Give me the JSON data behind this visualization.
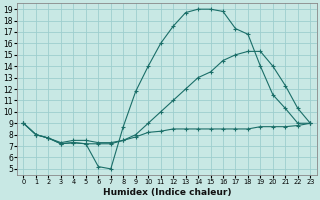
{
  "xlabel": "Humidex (Indice chaleur)",
  "bg_color": "#c8e8e4",
  "grid_color": "#9ecece",
  "line_color": "#1a6e68",
  "xlim": [
    -0.5,
    23.5
  ],
  "ylim": [
    4.5,
    19.5
  ],
  "xticks": [
    0,
    1,
    2,
    3,
    4,
    5,
    6,
    7,
    8,
    9,
    10,
    11,
    12,
    13,
    14,
    15,
    16,
    17,
    18,
    19,
    20,
    21,
    22,
    23
  ],
  "yticks": [
    5,
    6,
    7,
    8,
    9,
    10,
    11,
    12,
    13,
    14,
    15,
    16,
    17,
    18,
    19
  ],
  "line_top": {
    "x": [
      0,
      1,
      2,
      3,
      4,
      5,
      6,
      7,
      8,
      9,
      10,
      11,
      12,
      13,
      14,
      15,
      16,
      17,
      18,
      19,
      20,
      21,
      22,
      23
    ],
    "y": [
      9.0,
      8.0,
      7.7,
      7.2,
      7.3,
      7.2,
      5.2,
      5.0,
      8.7,
      11.8,
      14.0,
      16.0,
      17.5,
      18.7,
      19.0,
      19.0,
      18.8,
      17.3,
      16.8,
      14.0,
      11.5,
      10.3,
      9.0,
      9.0
    ]
  },
  "line_mid": {
    "x": [
      0,
      1,
      2,
      3,
      4,
      5,
      6,
      7,
      8,
      9,
      10,
      11,
      12,
      13,
      14,
      15,
      16,
      17,
      18,
      19,
      20,
      21,
      22,
      23
    ],
    "y": [
      9.0,
      8.0,
      7.7,
      7.3,
      7.5,
      7.5,
      7.3,
      7.3,
      7.5,
      8.0,
      9.0,
      10.0,
      11.0,
      12.0,
      13.0,
      13.5,
      14.5,
      15.0,
      15.3,
      15.3,
      14.0,
      12.3,
      10.3,
      9.0
    ]
  },
  "line_bot": {
    "x": [
      0,
      1,
      2,
      3,
      4,
      5,
      6,
      7,
      8,
      9,
      10,
      11,
      12,
      13,
      14,
      15,
      16,
      17,
      18,
      19,
      20,
      21,
      22,
      23
    ],
    "y": [
      9.0,
      8.0,
      7.7,
      7.2,
      7.3,
      7.2,
      7.2,
      7.2,
      7.5,
      7.8,
      8.2,
      8.3,
      8.5,
      8.5,
      8.5,
      8.5,
      8.5,
      8.5,
      8.5,
      8.7,
      8.7,
      8.7,
      8.8,
      9.0
    ]
  }
}
